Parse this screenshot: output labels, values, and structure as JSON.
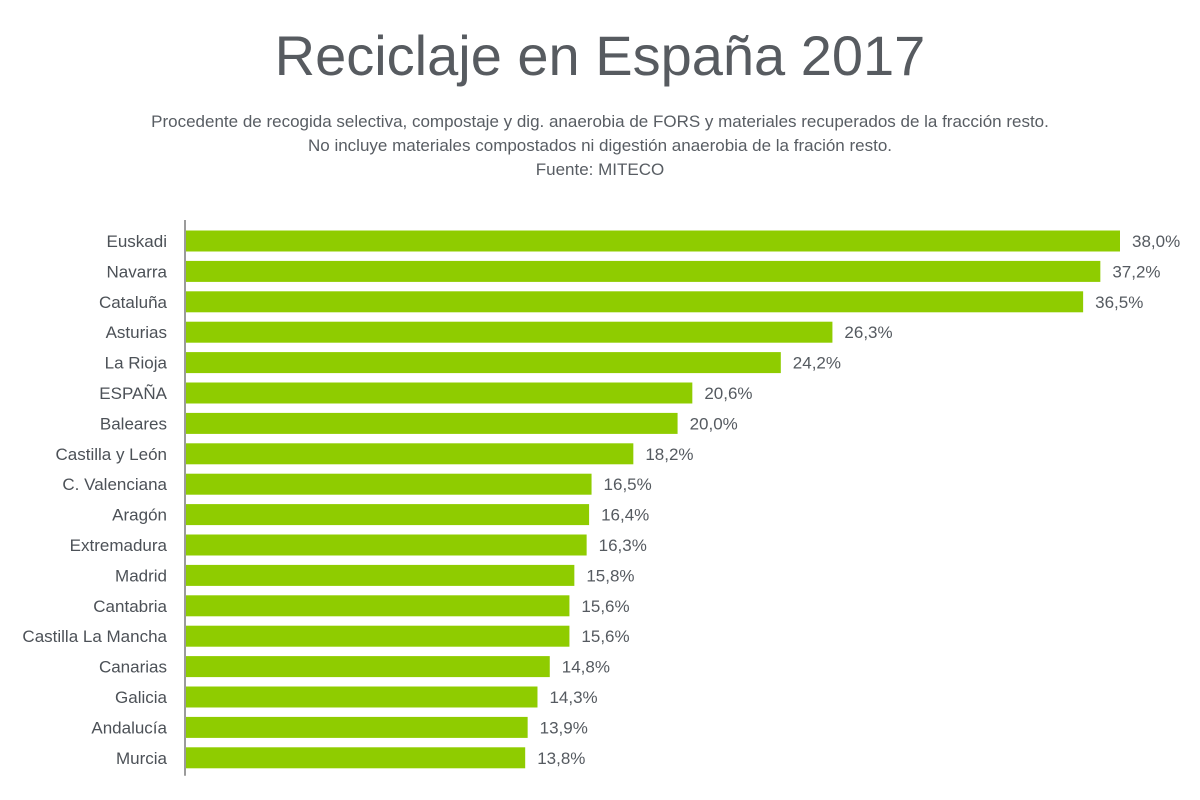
{
  "chart_data": {
    "type": "bar",
    "orientation": "horizontal",
    "title": "Reciclaje en España 2017",
    "subtitle_lines": [
      "Procedente de recogida selectiva, compostaje y dig. anaerobia de FORS y materiales recuperados de la fracción resto.",
      "No incluye materiales compostados ni digestión anaerobia de la fración resto.",
      "Fuente: MITECO"
    ],
    "categories": [
      "Euskadi",
      "Navarra",
      "Cataluña",
      "Asturias",
      "La Rioja",
      "ESPAÑA",
      "Baleares",
      "Castilla y León",
      "C. Valenciana",
      "Aragón",
      "Extremadura",
      "Madrid",
      "Cantabria",
      "Castilla La Mancha",
      "Canarias",
      "Galicia",
      "Andalucía",
      "Murcia"
    ],
    "values": [
      38.0,
      37.2,
      36.5,
      26.3,
      24.2,
      20.6,
      20.0,
      18.2,
      16.5,
      16.4,
      16.3,
      15.8,
      15.6,
      15.6,
      14.8,
      14.3,
      13.9,
      13.8
    ],
    "value_labels": [
      "38,0%",
      "37,2%",
      "36,5%",
      "26,3%",
      "24,2%",
      "20,6%",
      "20,0%",
      "18,2%",
      "16,5%",
      "16,4%",
      "16,3%",
      "15,8%",
      "15,6%",
      "15,6%",
      "14,8%",
      "14,3%",
      "13,9%",
      "13,8%"
    ],
    "xlim": [
      0,
      38.0
    ],
    "xlabel": "",
    "ylabel": "",
    "grid": false,
    "bar_color": "#8fcc00"
  }
}
